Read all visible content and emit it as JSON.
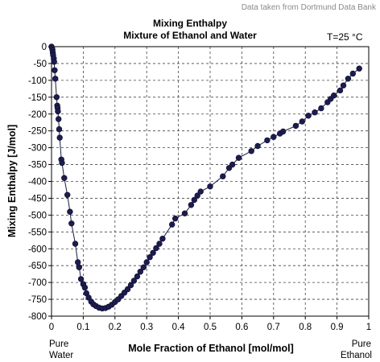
{
  "chart_data": {
    "type": "scatter",
    "title": "Mixing Enthalpy",
    "subtitle": "Mixture of Ethanol and Water",
    "credit": "Data taken from Dortmund Data Bank",
    "annotation": "T=25 °C",
    "xlabel": "Mole  Fraction of Ethanol  [mol/mol]",
    "ylabel": "Mixing Enthalpy [J/mol]",
    "xlim": [
      0,
      1
    ],
    "ylim": [
      -800,
      0
    ],
    "xticks": [
      0,
      0.1,
      0.2,
      0.3,
      0.4,
      0.5,
      0.6,
      0.7,
      0.8,
      0.9,
      1
    ],
    "xtick_labels": [
      "0",
      "0.1",
      "0.2",
      "0.3",
      "0.4",
      "0.5",
      "0.6",
      "0.7",
      "0.8",
      "0.9",
      "1"
    ],
    "yticks": [
      0,
      -50,
      -100,
      -150,
      -200,
      -250,
      -300,
      -350,
      -400,
      -450,
      -500,
      -550,
      -600,
      -650,
      -700,
      -750,
      -800
    ],
    "ytick_labels": [
      "0",
      "-50",
      "-100",
      "-150",
      "-200",
      "-250",
      "-300",
      "-350",
      "-400",
      "-450",
      "-500",
      "-550",
      "-600",
      "-650",
      "-700",
      "-750",
      "-800"
    ],
    "grid": true,
    "left_end_label": [
      "Pure",
      "Water"
    ],
    "right_end_label": [
      "Pure",
      "Ethanol"
    ],
    "marker_color": "#1c1c4e",
    "line_color": "#1a1a40",
    "series": [
      {
        "points": [
          [
            0.0,
            0
          ],
          [
            0.002,
            -5
          ],
          [
            0.003,
            -10
          ],
          [
            0.004,
            -18
          ],
          [
            0.005,
            -25
          ],
          [
            0.007,
            -35
          ],
          [
            0.008,
            -45
          ],
          [
            0.01,
            -70
          ],
          [
            0.012,
            -95
          ],
          [
            0.016,
            -150
          ],
          [
            0.018,
            -175
          ],
          [
            0.019,
            -182
          ],
          [
            0.02,
            -192
          ],
          [
            0.022,
            -215
          ],
          [
            0.024,
            -245
          ],
          [
            0.026,
            -270
          ],
          [
            0.031,
            -335
          ],
          [
            0.033,
            -345
          ],
          [
            0.04,
            -390
          ],
          [
            0.05,
            -440
          ],
          [
            0.058,
            -490
          ],
          [
            0.063,
            -525
          ],
          [
            0.075,
            -585
          ],
          [
            0.083,
            -640
          ],
          [
            0.087,
            -655
          ],
          [
            0.093,
            -690
          ],
          [
            0.1,
            -705
          ],
          [
            0.105,
            -715
          ],
          [
            0.11,
            -732
          ],
          [
            0.117,
            -745
          ],
          [
            0.125,
            -757
          ],
          [
            0.132,
            -765
          ],
          [
            0.14,
            -770
          ],
          [
            0.15,
            -775
          ],
          [
            0.16,
            -777
          ],
          [
            0.17,
            -776
          ],
          [
            0.18,
            -772
          ],
          [
            0.19,
            -766
          ],
          [
            0.2,
            -758
          ],
          [
            0.21,
            -750
          ],
          [
            0.22,
            -740
          ],
          [
            0.23,
            -730
          ],
          [
            0.24,
            -720
          ],
          [
            0.25,
            -708
          ],
          [
            0.26,
            -695
          ],
          [
            0.27,
            -682
          ],
          [
            0.28,
            -668
          ],
          [
            0.29,
            -655
          ],
          [
            0.3,
            -640
          ],
          [
            0.31,
            -625
          ],
          [
            0.32,
            -612
          ],
          [
            0.33,
            -598
          ],
          [
            0.34,
            -585
          ],
          [
            0.35,
            -570
          ],
          [
            0.38,
            -528
          ],
          [
            0.39,
            -510
          ],
          [
            0.42,
            -495
          ],
          [
            0.44,
            -470
          ],
          [
            0.45,
            -455
          ],
          [
            0.46,
            -442
          ],
          [
            0.47,
            -430
          ],
          [
            0.5,
            -415
          ],
          [
            0.54,
            -385
          ],
          [
            0.56,
            -360
          ],
          [
            0.57,
            -350
          ],
          [
            0.59,
            -330
          ],
          [
            0.63,
            -310
          ],
          [
            0.65,
            -295
          ],
          [
            0.68,
            -278
          ],
          [
            0.7,
            -268
          ],
          [
            0.72,
            -258
          ],
          [
            0.73,
            -252
          ],
          [
            0.77,
            -235
          ],
          [
            0.79,
            -222
          ],
          [
            0.81,
            -205
          ],
          [
            0.83,
            -195
          ],
          [
            0.85,
            -183
          ],
          [
            0.87,
            -165
          ],
          [
            0.88,
            -155
          ],
          [
            0.89,
            -145
          ],
          [
            0.91,
            -130
          ],
          [
            0.92,
            -115
          ],
          [
            0.935,
            -95
          ],
          [
            0.95,
            -80
          ],
          [
            0.97,
            -65
          ]
        ]
      }
    ]
  }
}
